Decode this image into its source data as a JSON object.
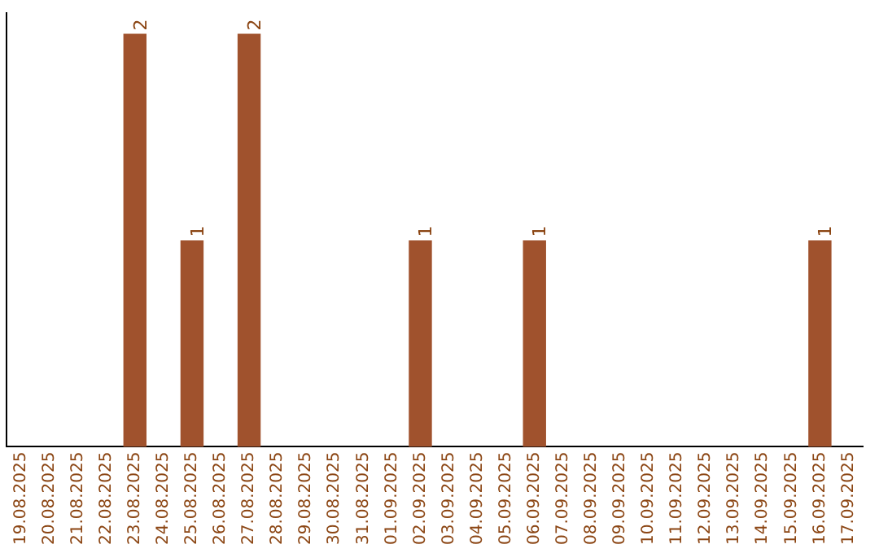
{
  "chart_data": {
    "type": "bar",
    "categories": [
      "19.08.2025",
      "20.08.2025",
      "21.08.2025",
      "22.08.2025",
      "23.08.2025",
      "24.08.2025",
      "25.08.2025",
      "26.08.2025",
      "27.08.2025",
      "28.08.2025",
      "29.08.2025",
      "30.08.2025",
      "31.08.2025",
      "01.09.2025",
      "02.09.2025",
      "03.09.2025",
      "04.09.2025",
      "05.09.2025",
      "06.09.2025",
      "07.09.2025",
      "08.09.2025",
      "09.09.2025",
      "10.09.2025",
      "11.09.2025",
      "12.09.2025",
      "13.09.2025",
      "14.09.2025",
      "15.09.2025",
      "16.09.2025",
      "17.09.2025"
    ],
    "values": [
      0,
      0,
      0,
      0,
      2,
      0,
      1,
      0,
      2,
      0,
      0,
      0,
      0,
      0,
      1,
      0,
      0,
      0,
      1,
      0,
      0,
      0,
      0,
      0,
      0,
      0,
      0,
      0,
      1,
      0
    ],
    "value_labels": [
      null,
      null,
      null,
      null,
      "2",
      null,
      "1",
      null,
      "2",
      null,
      null,
      null,
      null,
      null,
      "1",
      null,
      null,
      null,
      "1",
      null,
      null,
      null,
      null,
      null,
      null,
      null,
      null,
      null,
      "1",
      null
    ],
    "color": "#a0522d",
    "ylim": [
      0,
      2.1
    ],
    "tick_labels": "x",
    "grid": false,
    "legend": false
  }
}
